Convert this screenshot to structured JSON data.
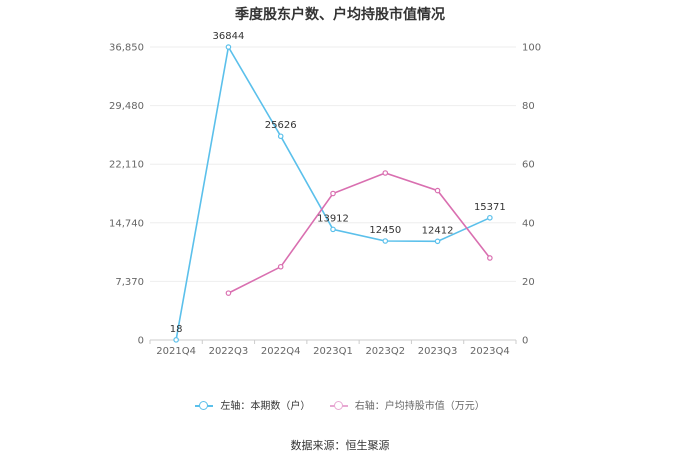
{
  "title": "季度股东户数、户均持股市值情况",
  "source": "数据来源：恒生聚源",
  "colors": {
    "left_series": "#5bc0eb",
    "right_series": "#d96fb0"
  },
  "chart_data": {
    "type": "line",
    "categories": [
      "2021Q4",
      "2022Q3",
      "2022Q4",
      "2023Q1",
      "2023Q2",
      "2023Q3",
      "2023Q4"
    ],
    "y_left": {
      "ticks": [
        "0",
        "7,370",
        "14,740",
        "22,110",
        "29,480",
        "36,850"
      ],
      "ylim": [
        0,
        36850
      ]
    },
    "y_right": {
      "ticks": [
        "0",
        "20",
        "40",
        "60",
        "80",
        "100"
      ],
      "ylim": [
        0,
        100
      ]
    },
    "grid": true,
    "legend_position": "bottom",
    "series": [
      {
        "name": "左轴：本期数（户）",
        "axis": "left",
        "values": [
          18,
          36844,
          25626,
          13912,
          12450,
          12412,
          15371
        ],
        "labels": [
          "18",
          "36844",
          "25626",
          "13912",
          "12450",
          "12412",
          "15371"
        ]
      },
      {
        "name": "右轴：户均持股市值（万元）",
        "axis": "right",
        "values": [
          null,
          16,
          25,
          50,
          57,
          51,
          28
        ]
      }
    ]
  }
}
